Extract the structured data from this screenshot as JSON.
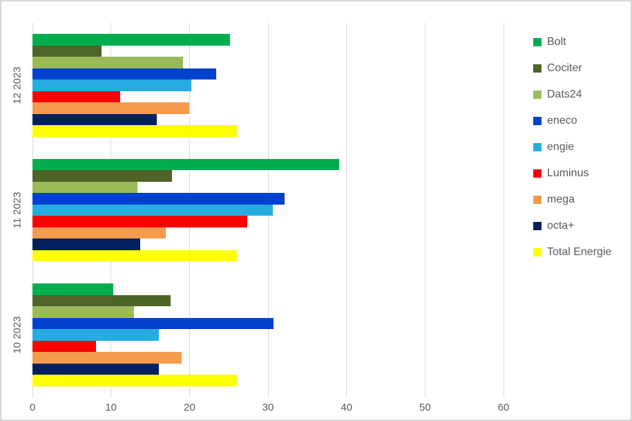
{
  "chart_data": {
    "type": "bar",
    "orientation": "horizontal",
    "title": "",
    "xlabel": "",
    "ylabel": "",
    "grid": true,
    "legend_position": "right",
    "categories": [
      "12 2023",
      "11 2023",
      "10 2023"
    ],
    "series": [
      {
        "name": "Bolt",
        "color": "#00AE4F",
        "values": [
          25.2,
          39.1,
          10.3
        ]
      },
      {
        "name": "Cociter",
        "color": "#4E6428",
        "values": [
          8.8,
          17.8,
          17.6
        ]
      },
      {
        "name": "Dats24",
        "color": "#9BBB59",
        "values": [
          19.2,
          13.4,
          12.9
        ]
      },
      {
        "name": "eneco",
        "color": "#0241CE",
        "values": [
          23.4,
          32.1,
          30.7
        ]
      },
      {
        "name": "engie",
        "color": "#27ACE2",
        "values": [
          20.2,
          30.6,
          16.1
        ]
      },
      {
        "name": "Luminus",
        "color": "#FB0000",
        "values": [
          11.2,
          27.4,
          8.1
        ]
      },
      {
        "name": "mega",
        "color": "#F59B4D",
        "values": [
          20.0,
          17.0,
          19.0
        ]
      },
      {
        "name": "octa+",
        "color": "#04215F",
        "values": [
          15.8,
          13.7,
          16.1
        ]
      },
      {
        "name": "Total Energie",
        "color": "#FDFF00",
        "values": [
          26.0,
          26.0,
          26.0
        ]
      }
    ],
    "x_axis": {
      "min": 0,
      "max": 60,
      "tick_step": 10,
      "tick_labels": [
        "0",
        "10",
        "20",
        "30",
        "40",
        "50",
        "60"
      ]
    },
    "colors": {
      "gridline": "#d9d9d9",
      "frame_border": "#d7d7d7",
      "axis_text": "#595959",
      "background": "#ffffff"
    }
  }
}
